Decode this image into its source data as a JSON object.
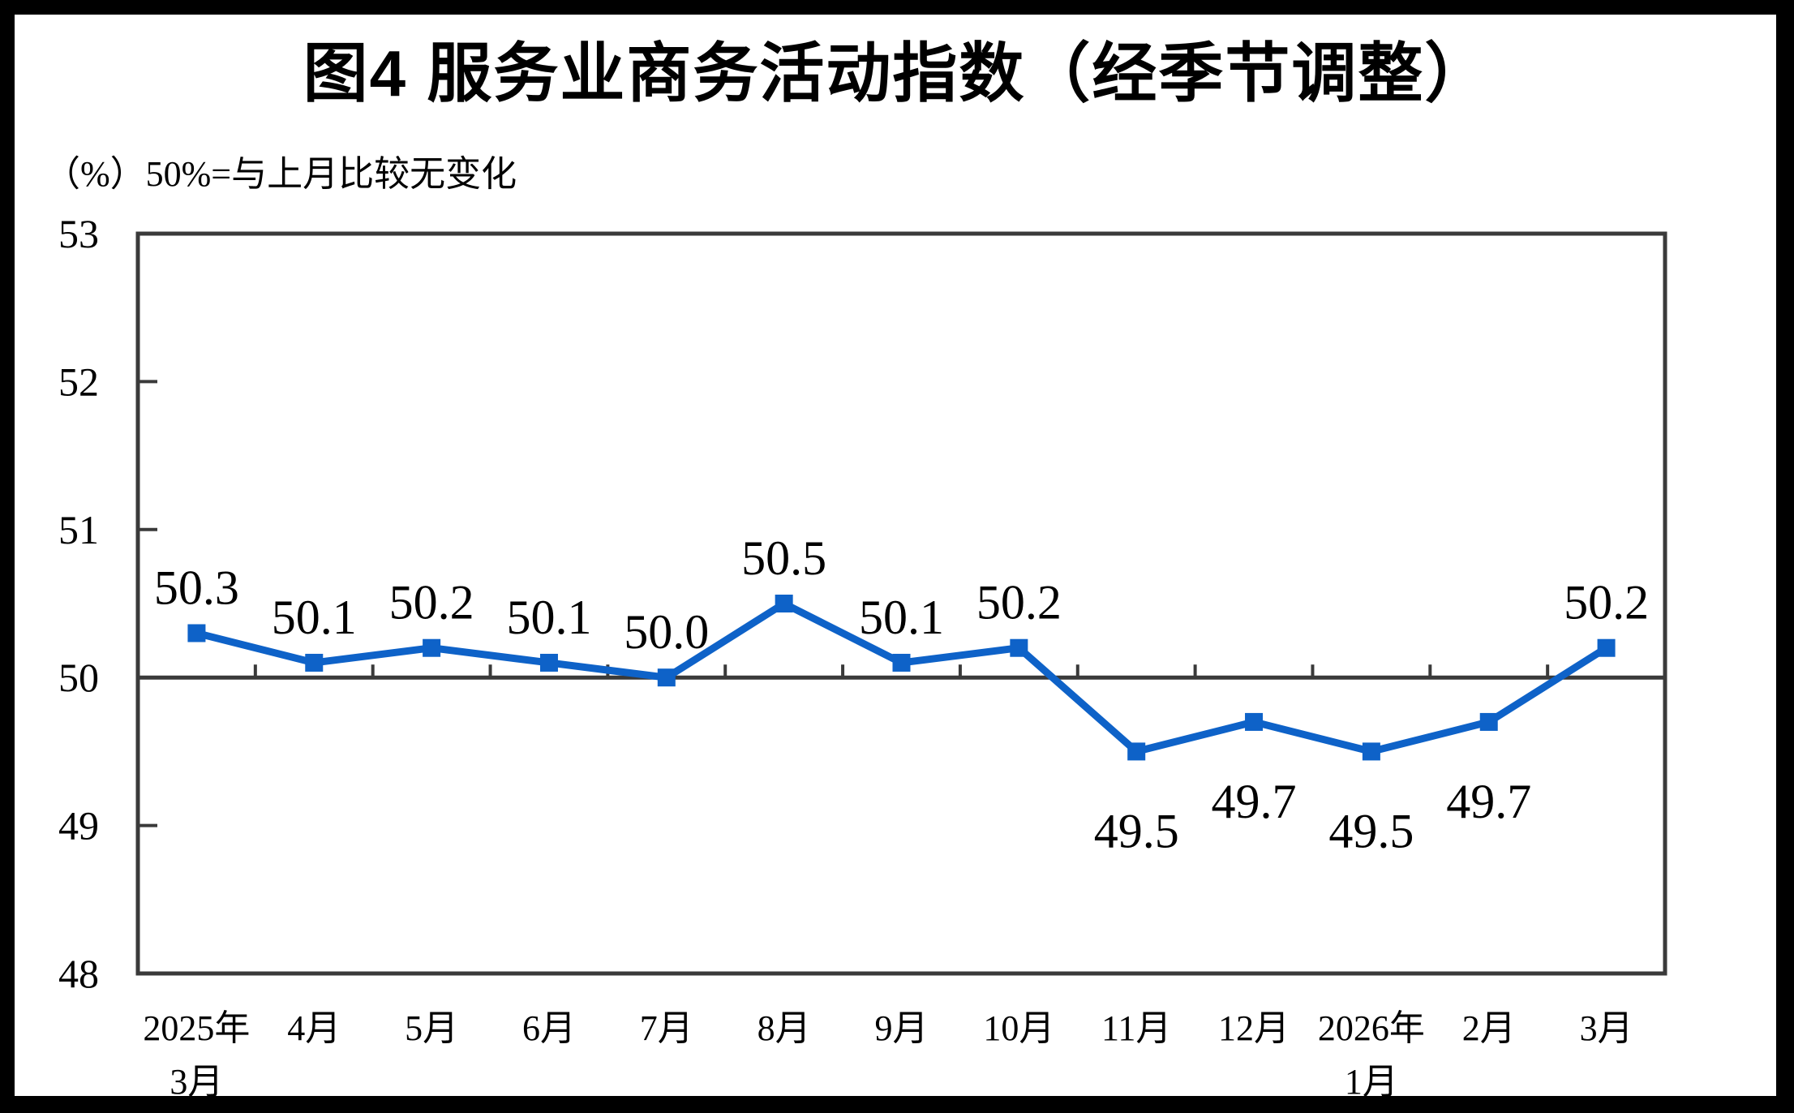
{
  "page": {
    "title": "图4 服务业商务活动指数（经季节调整）",
    "unit_note": "（%）50%=与上月比较无变化"
  },
  "colors": {
    "series_blue": "#0E62C8",
    "axis_dark": "#3A3A3A",
    "text_black": "#000000",
    "frame_black": "#000000",
    "background_white": "#FFFFFF"
  },
  "chart_data": {
    "type": "line",
    "title": "图4 服务业商务活动指数（经季节调整）",
    "unit_label": "（%）50%=与上月比较无变化",
    "categories": [
      "2025年\n3月",
      "4月",
      "5月",
      "6月",
      "7月",
      "8月",
      "9月",
      "10月",
      "11月",
      "12月",
      "2026年\n1月",
      "2月",
      "3月"
    ],
    "series": [
      {
        "name": "服务业商务活动指数",
        "values": [
          50.3,
          50.1,
          50.2,
          50.1,
          50.0,
          50.5,
          50.1,
          50.2,
          49.5,
          49.7,
          49.5,
          49.7,
          50.2
        ]
      }
    ],
    "data_labels": [
      "50.3",
      "50.1",
      "50.2",
      "50.1",
      "50.0",
      "50.5",
      "50.1",
      "50.2",
      "49.5",
      "49.7",
      "49.5",
      "49.7",
      "50.2"
    ],
    "ylim": [
      48,
      53
    ],
    "yticks": [
      "48",
      "49",
      "50",
      "51",
      "52",
      "53"
    ],
    "reference_line": 50,
    "grid": "off",
    "legend_position": "none",
    "marker": "square"
  }
}
